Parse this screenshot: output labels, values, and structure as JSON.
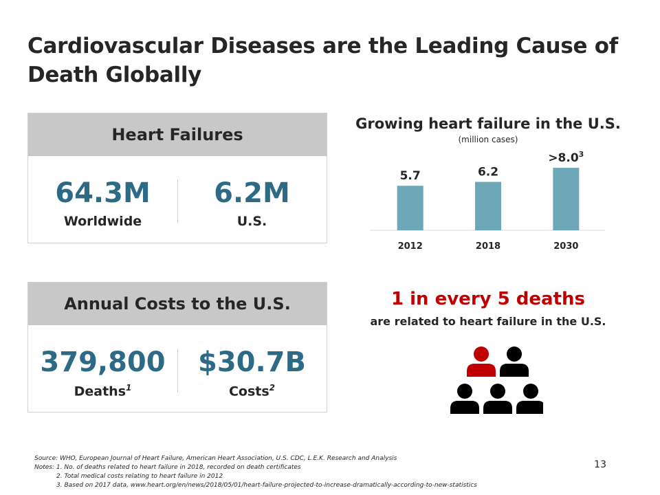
{
  "title": "Cardiovascular Diseases are the Leading Cause of Death Globally",
  "heart_failures": {
    "header": "Heart Failures",
    "stats": [
      {
        "value": "64.3M",
        "label": "Worldwide"
      },
      {
        "value": "6.2M",
        "label": "U.S."
      }
    ]
  },
  "annual_costs": {
    "header": "Annual Costs to the U.S.",
    "stats": [
      {
        "value": "379,800",
        "label": "Deaths",
        "sup": "1"
      },
      {
        "value": "$30.7B",
        "label": "Costs",
        "sup": "2"
      }
    ]
  },
  "chart_data": {
    "type": "bar",
    "title": "Growing heart failure in the U.S.",
    "subtitle": "(million cases)",
    "categories": [
      "2012",
      "2018",
      "2030"
    ],
    "values": [
      5.7,
      6.2,
      8.0
    ],
    "value_labels": [
      "5.7",
      "6.2",
      ">8.0"
    ],
    "label_sups": [
      "",
      "",
      "3"
    ],
    "ylim": [
      0,
      8.8
    ],
    "bar_color": "#6ea7b8"
  },
  "deaths_stat": {
    "headline": "1 in every 5 deaths",
    "subtext": "are related to heart failure in the U.S.",
    "highlight_color": "#c00000",
    "person_color": "#000000"
  },
  "footer": {
    "source": "Source: WHO, European Journal of Heart Failure, American Heart Association, U.S. CDC, L.E.K. Research and Analysis",
    "notes_label": "Notes:",
    "notes": [
      "1. No. of deaths related to heart failure in 2018, recorded on death certificates",
      "2. Total medical costs relating to heart failure in 2012",
      "3. Based on 2017 data, www.heart.org/en/news/2018/05/01/heart-failure-projected-to-increase-dramatically-according-to-new-statistics"
    ]
  },
  "page_number": "13"
}
